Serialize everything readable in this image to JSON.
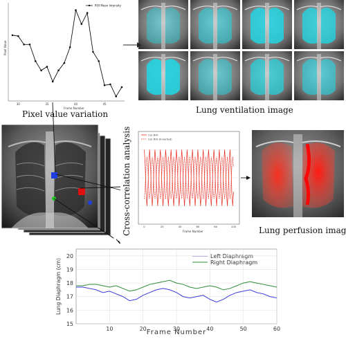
{
  "captions": {
    "pixel_value_variation": "Pixel value variation",
    "lung_ventilation_image": "Lung ventilation image",
    "cross_correlation_analysis": "Cross-correlation analysis",
    "lung_perfusion_image": "Lung perfusion image"
  },
  "colors": {
    "ventilation": "#22d3e0",
    "perfusion": "#e8281e",
    "roi_blue": "#1f3fe0",
    "roi_red": "#e01010",
    "roi_green": "#22cc22",
    "left_diaphragm": "#3a3ad8",
    "right_diaphragm": "#2e8b3a"
  },
  "chart_data": [
    {
      "id": "pixel-value",
      "type": "line",
      "title": "",
      "xlabel": "Frame Number",
      "ylabel": "Pixel Value",
      "legend": [
        "ROI Mean Intensity"
      ],
      "legend_position": "top-right",
      "xlim": [
        29,
        48
      ],
      "ylim": [
        0,
        100
      ],
      "xticks": [
        30,
        35,
        40,
        45
      ],
      "series": [
        {
          "name": "ROI Mean Intensity",
          "x": [
            29,
            30,
            31,
            32,
            33,
            34,
            35,
            36,
            37,
            38,
            39,
            40,
            41,
            42,
            43,
            44,
            45,
            46,
            47,
            48
          ],
          "y": [
            68,
            67,
            58,
            58,
            40,
            30,
            34,
            18,
            30,
            38,
            55,
            95,
            80,
            92,
            50,
            40,
            14,
            15,
            2,
            12
          ]
        }
      ]
    },
    {
      "id": "cross-correlation",
      "type": "line",
      "title": "",
      "xlabel": "Frame Number",
      "ylabel": "",
      "legend": [
        "Cor ROI",
        "Cor ROI (Inverted)"
      ],
      "legend_position": "top-left",
      "xlim": [
        -5,
        105
      ],
      "ylim": [
        -1.5,
        1.5
      ],
      "xticks": [
        0,
        20,
        40,
        60,
        80,
        100
      ],
      "period": 6,
      "series": [
        {
          "name": "Cor ROI",
          "amplitude": 1.0,
          "phase": 0
        },
        {
          "name": "Cor ROI (Inverted)",
          "amplitude": 0.75,
          "phase": 3
        }
      ]
    },
    {
      "id": "lung-diaphragm",
      "type": "line",
      "title": "",
      "xlabel": "Frame Number",
      "ylabel": "Lung Diaphragm (cm)",
      "legend": [
        "Left Diaphragm",
        "Right Diaphragm"
      ],
      "legend_position": "top-right",
      "xlim": [
        0,
        60
      ],
      "ylim": [
        15,
        20.5
      ],
      "xticks": [
        10,
        20,
        30,
        40,
        50,
        60
      ],
      "yticks": [
        15,
        16,
        17,
        18,
        19,
        20
      ],
      "series": [
        {
          "name": "Left Diaphragm",
          "x": [
            0,
            2,
            4,
            6,
            8,
            10,
            12,
            14,
            16,
            18,
            20,
            22,
            24,
            26,
            28,
            30,
            32,
            34,
            36,
            38,
            40,
            42,
            44,
            46,
            48,
            50,
            52,
            54,
            56,
            58,
            60
          ],
          "y": [
            17.7,
            17.7,
            17.6,
            17.5,
            17.3,
            17.4,
            17.2,
            17.0,
            16.7,
            16.8,
            17.1,
            17.3,
            17.5,
            17.6,
            17.5,
            17.3,
            17.0,
            16.9,
            17.0,
            17.1,
            16.8,
            16.6,
            16.8,
            17.1,
            17.3,
            17.4,
            17.5,
            17.3,
            17.2,
            17.0,
            16.9
          ]
        },
        {
          "name": "Right Diaphragm",
          "x": [
            0,
            2,
            4,
            6,
            8,
            10,
            12,
            14,
            16,
            18,
            20,
            22,
            24,
            26,
            28,
            30,
            32,
            34,
            36,
            38,
            40,
            42,
            44,
            46,
            48,
            50,
            52,
            54,
            56,
            58,
            60
          ],
          "y": [
            17.8,
            17.8,
            17.9,
            17.9,
            17.8,
            17.7,
            17.8,
            17.6,
            17.4,
            17.5,
            17.7,
            17.9,
            18.0,
            18.1,
            18.2,
            18.0,
            17.9,
            17.7,
            17.6,
            17.7,
            17.8,
            17.7,
            17.5,
            17.6,
            17.8,
            18.0,
            18.1,
            18.0,
            17.9,
            17.8,
            17.7
          ]
        }
      ]
    }
  ]
}
